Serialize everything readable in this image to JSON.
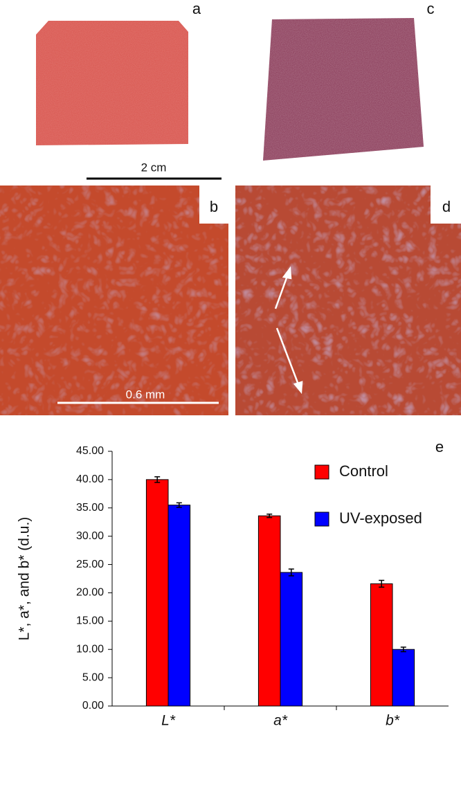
{
  "panel_labels": [
    "a",
    "b",
    "c",
    "d"
  ],
  "scale_bars": [
    "2 cm",
    "0.6 mm"
  ],
  "chart_data": {
    "type": "bar",
    "panel_label": "e",
    "y_label": "L*, a*, and b* (d.u.)",
    "categories": [
      "L*",
      "a*",
      "b*"
    ],
    "series": [
      {
        "name": "Control",
        "color": "#ff0000",
        "values": [
          40.0,
          33.6,
          21.6
        ],
        "errors": [
          0.5,
          0.3,
          0.6
        ]
      },
      {
        "name": "UV-exposed",
        "color": "#0000ff",
        "values": [
          35.5,
          23.6,
          10.0
        ],
        "errors": [
          0.4,
          0.6,
          0.4
        ]
      }
    ],
    "ylim": [
      0,
      45
    ],
    "yticks": [
      {
        "value": 0,
        "label": "0.00"
      },
      {
        "value": 5,
        "label": "5.00"
      },
      {
        "value": 10,
        "label": "10.00"
      },
      {
        "value": 15,
        "label": "15.00"
      },
      {
        "value": 20,
        "label": "20.00"
      },
      {
        "value": 25,
        "label": "25.00"
      },
      {
        "value": 30,
        "label": "30.00"
      },
      {
        "value": 35,
        "label": "35.00"
      },
      {
        "value": 40,
        "label": "40.00"
      },
      {
        "value": 45,
        "label": "45.00"
      }
    ],
    "legend": "upper right"
  }
}
